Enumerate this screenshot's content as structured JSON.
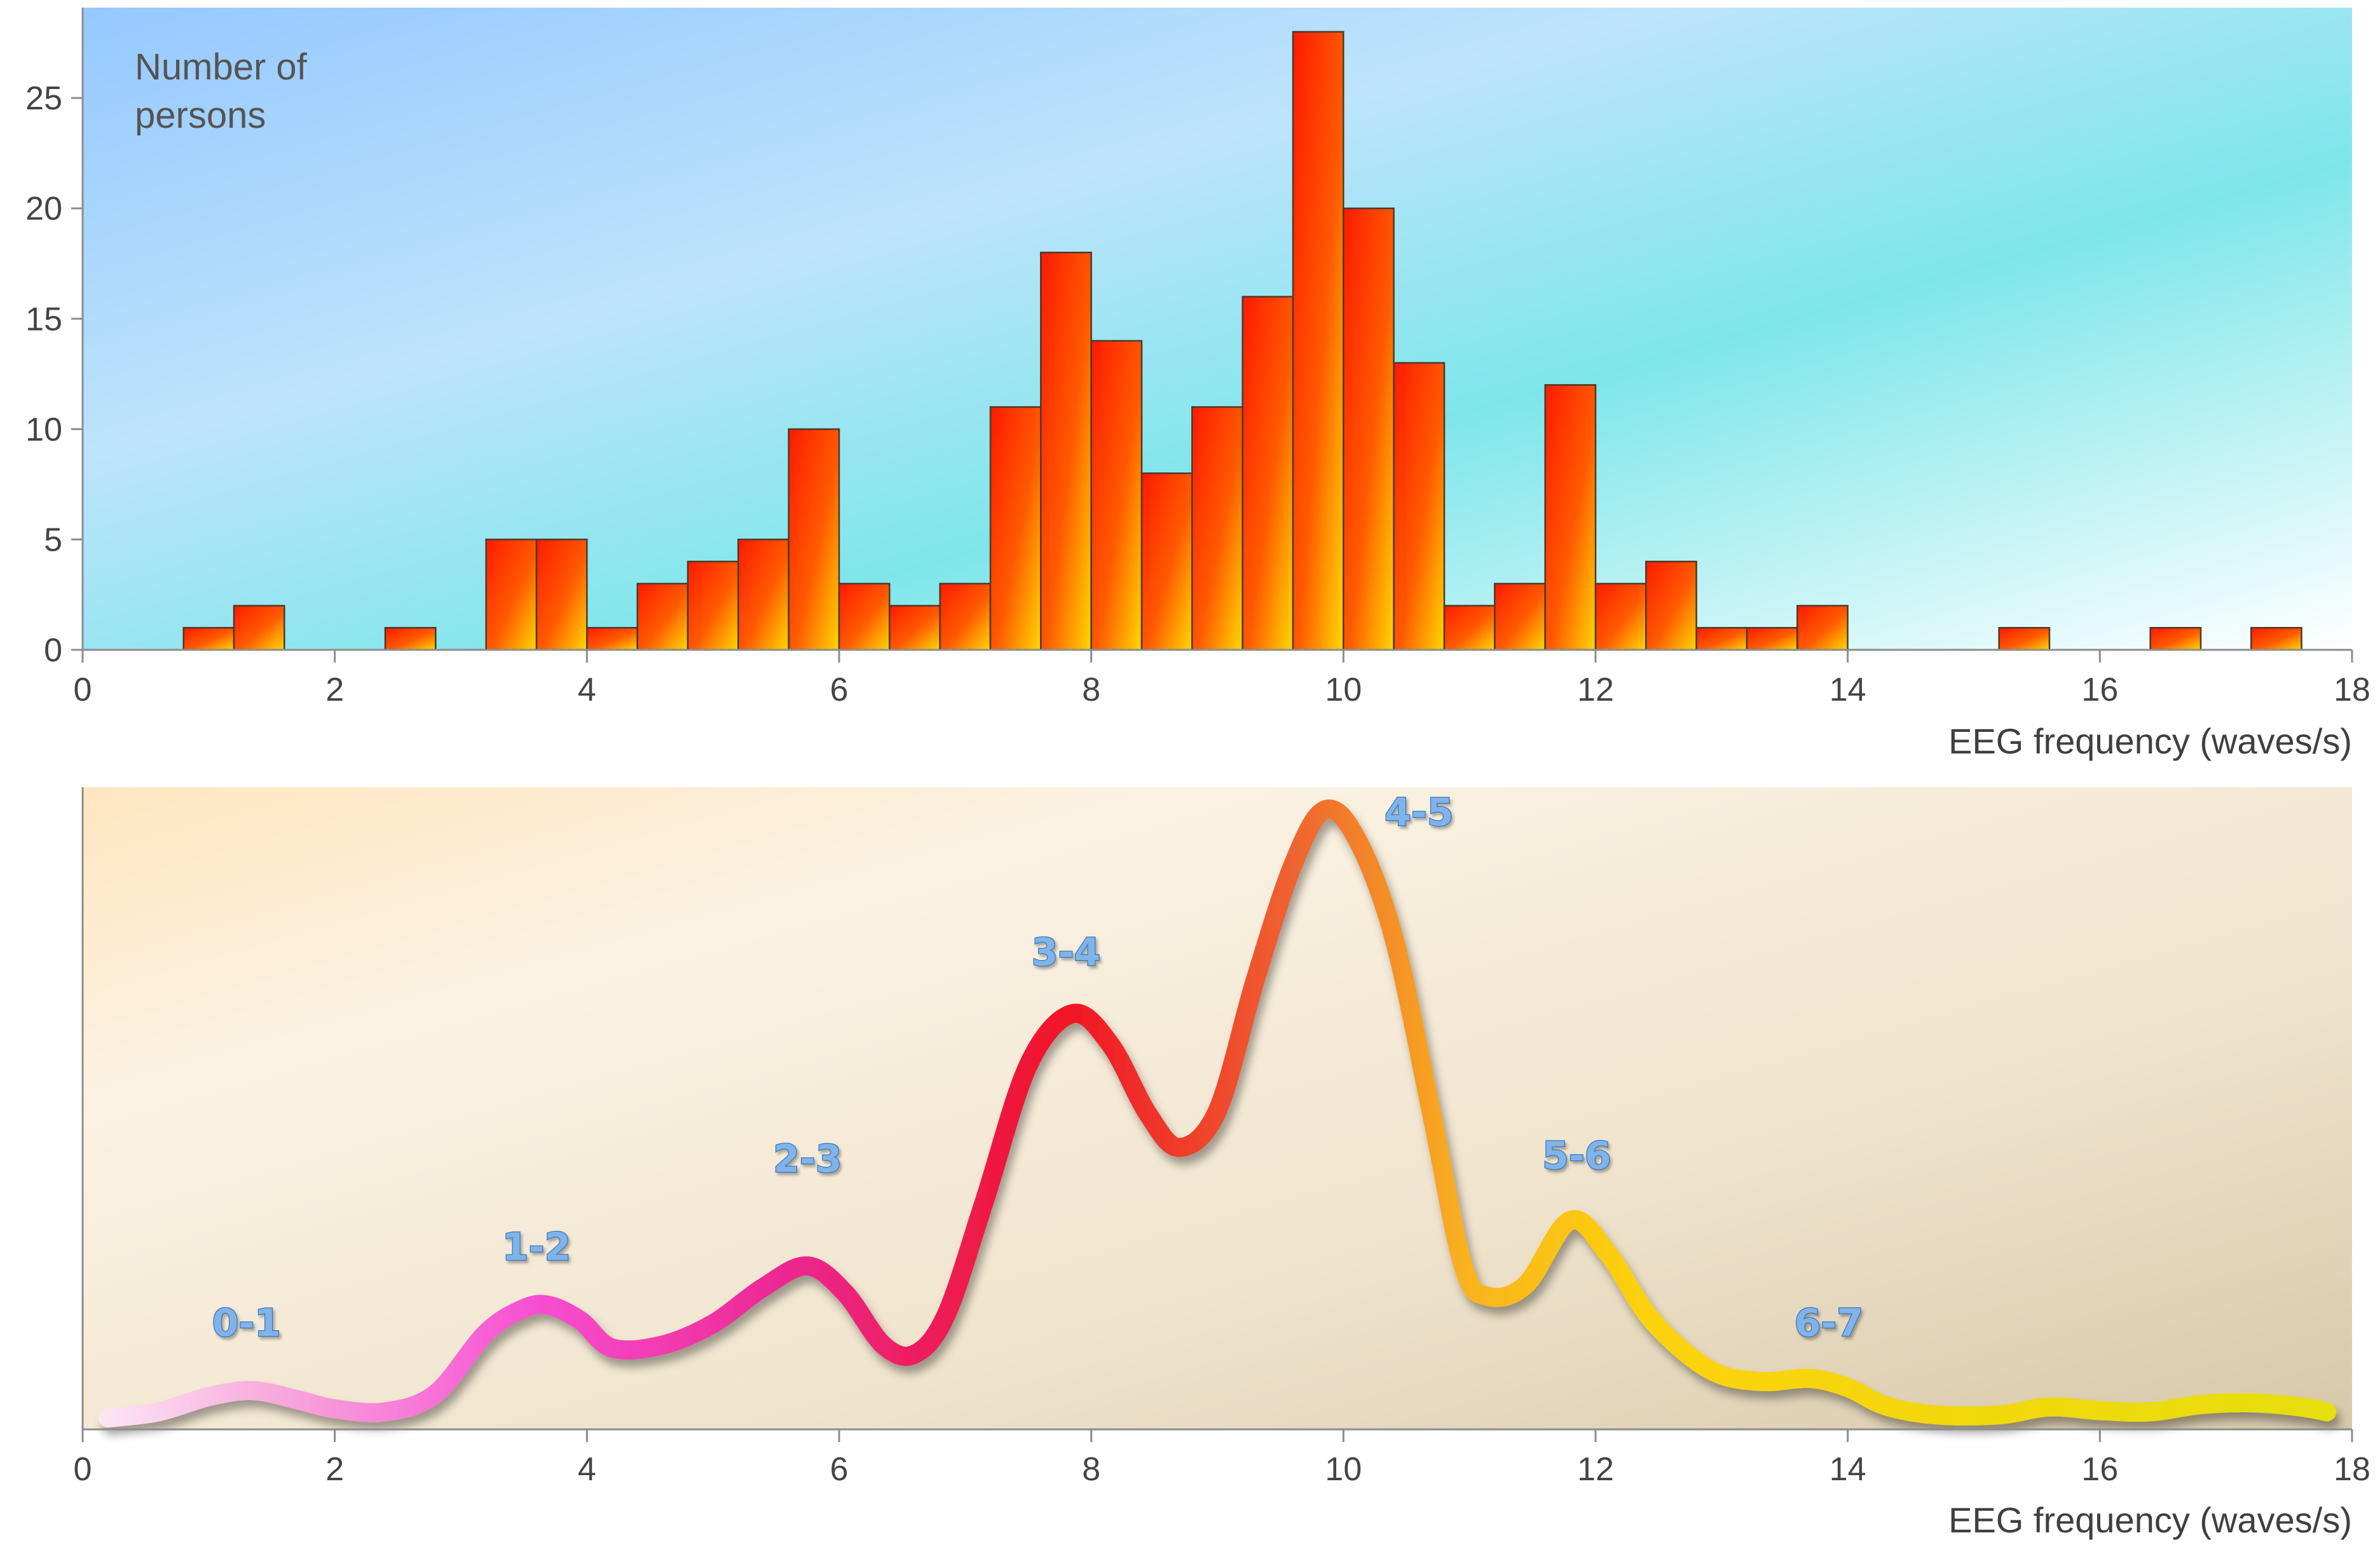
{
  "chart_data": [
    {
      "type": "bar",
      "xlabel": "EEG frequency (waves/s)",
      "ylabel": "Number of persons",
      "ylabel_lines": [
        "Number of",
        "persons"
      ],
      "xlim": [
        0,
        18
      ],
      "ylim": [
        0,
        28
      ],
      "xticks": [
        0,
        2,
        4,
        6,
        8,
        10,
        12,
        14,
        16,
        18
      ],
      "yticks": [
        0,
        5,
        10,
        15,
        20,
        25
      ],
      "bin_width": 0.4,
      "bins": [
        {
          "x": 0.8,
          "value": 1
        },
        {
          "x": 1.2,
          "value": 2
        },
        {
          "x": 2.4,
          "value": 1
        },
        {
          "x": 3.2,
          "value": 5
        },
        {
          "x": 3.6,
          "value": 5
        },
        {
          "x": 4.0,
          "value": 1
        },
        {
          "x": 4.4,
          "value": 3
        },
        {
          "x": 4.8,
          "value": 4
        },
        {
          "x": 5.2,
          "value": 5
        },
        {
          "x": 5.6,
          "value": 10
        },
        {
          "x": 6.0,
          "value": 3
        },
        {
          "x": 6.4,
          "value": 2
        },
        {
          "x": 6.8,
          "value": 3
        },
        {
          "x": 7.2,
          "value": 11
        },
        {
          "x": 7.6,
          "value": 18
        },
        {
          "x": 8.0,
          "value": 14
        },
        {
          "x": 8.4,
          "value": 8
        },
        {
          "x": 8.8,
          "value": 11
        },
        {
          "x": 9.2,
          "value": 16
        },
        {
          "x": 9.6,
          "value": 28
        },
        {
          "x": 10.0,
          "value": 20
        },
        {
          "x": 10.4,
          "value": 13
        },
        {
          "x": 10.8,
          "value": 2
        },
        {
          "x": 11.2,
          "value": 3
        },
        {
          "x": 11.6,
          "value": 12
        },
        {
          "x": 12.0,
          "value": 3
        },
        {
          "x": 12.4,
          "value": 4
        },
        {
          "x": 12.8,
          "value": 1
        },
        {
          "x": 13.2,
          "value": 1
        },
        {
          "x": 13.6,
          "value": 2
        },
        {
          "x": 15.2,
          "value": 1
        },
        {
          "x": 16.4,
          "value": 1
        },
        {
          "x": 17.2,
          "value": 1
        }
      ],
      "colors": {
        "bar_top": "#ff1a00",
        "bar_bottom": "#ffd800",
        "background_start": "#96c8ff",
        "background_end": "#7ee6ea"
      }
    },
    {
      "type": "line",
      "xlabel": "EEG frequency (waves/s)",
      "xlim": [
        0,
        18
      ],
      "ylim": [
        0,
        1
      ],
      "xticks": [
        0,
        2,
        4,
        6,
        8,
        10,
        12,
        14,
        16,
        18
      ],
      "x": [
        0.2,
        0.6,
        1.0,
        1.35,
        1.7,
        2.0,
        2.4,
        2.8,
        3.2,
        3.5,
        3.7,
        3.95,
        4.2,
        4.6,
        5.0,
        5.4,
        5.75,
        6.05,
        6.35,
        6.6,
        6.85,
        7.15,
        7.5,
        7.85,
        8.15,
        8.45,
        8.7,
        9.0,
        9.3,
        9.6,
        9.85,
        10.1,
        10.4,
        10.7,
        10.95,
        11.15,
        11.45,
        11.8,
        12.1,
        12.45,
        12.9,
        13.3,
        13.7,
        14.0,
        14.3,
        14.7,
        15.2,
        15.6,
        16.0,
        16.4,
        16.8,
        17.2,
        17.6,
        17.8
      ],
      "y": [
        0.0,
        0.01,
        0.035,
        0.045,
        0.03,
        0.015,
        0.01,
        0.04,
        0.14,
        0.18,
        0.185,
        0.16,
        0.115,
        0.12,
        0.155,
        0.215,
        0.25,
        0.205,
        0.12,
        0.105,
        0.17,
        0.355,
        0.58,
        0.665,
        0.615,
        0.5,
        0.445,
        0.505,
        0.72,
        0.91,
        1.0,
        0.955,
        0.79,
        0.5,
        0.25,
        0.2,
        0.22,
        0.325,
        0.27,
        0.16,
        0.08,
        0.06,
        0.065,
        0.05,
        0.02,
        0.005,
        0.005,
        0.018,
        0.012,
        0.01,
        0.022,
        0.025,
        0.018,
        0.01
      ],
      "gradient": [
        {
          "x": 0.2,
          "color": "#fce4f2"
        },
        {
          "x": 1.6,
          "color": "#f7a6dc"
        },
        {
          "x": 3.6,
          "color": "#f74fd2"
        },
        {
          "x": 5.6,
          "color": "#ec2790"
        },
        {
          "x": 7.8,
          "color": "#f01426"
        },
        {
          "x": 9.6,
          "color": "#ef6330"
        },
        {
          "x": 11.0,
          "color": "#f9b41f"
        },
        {
          "x": 12.4,
          "color": "#fcd209"
        },
        {
          "x": 17.8,
          "color": "#e6de08"
        }
      ],
      "annotations": [
        {
          "text": "0-1",
          "x": 1.3,
          "y": 0.135
        },
        {
          "text": "1-2",
          "x": 3.6,
          "y": 0.26
        },
        {
          "text": "2-3",
          "x": 5.75,
          "y": 0.405
        },
        {
          "text": "3-4",
          "x": 7.8,
          "y": 0.745
        },
        {
          "text": "4-5",
          "x": 10.6,
          "y": 0.975
        },
        {
          "text": "5-6",
          "x": 11.85,
          "y": 0.41
        },
        {
          "text": "6-7",
          "x": 13.85,
          "y": 0.135
        }
      ],
      "colors": {
        "background_start": "#ffe6c0",
        "background_mid": "#fbf2e3",
        "background_end": "#d8c8aa"
      }
    }
  ]
}
